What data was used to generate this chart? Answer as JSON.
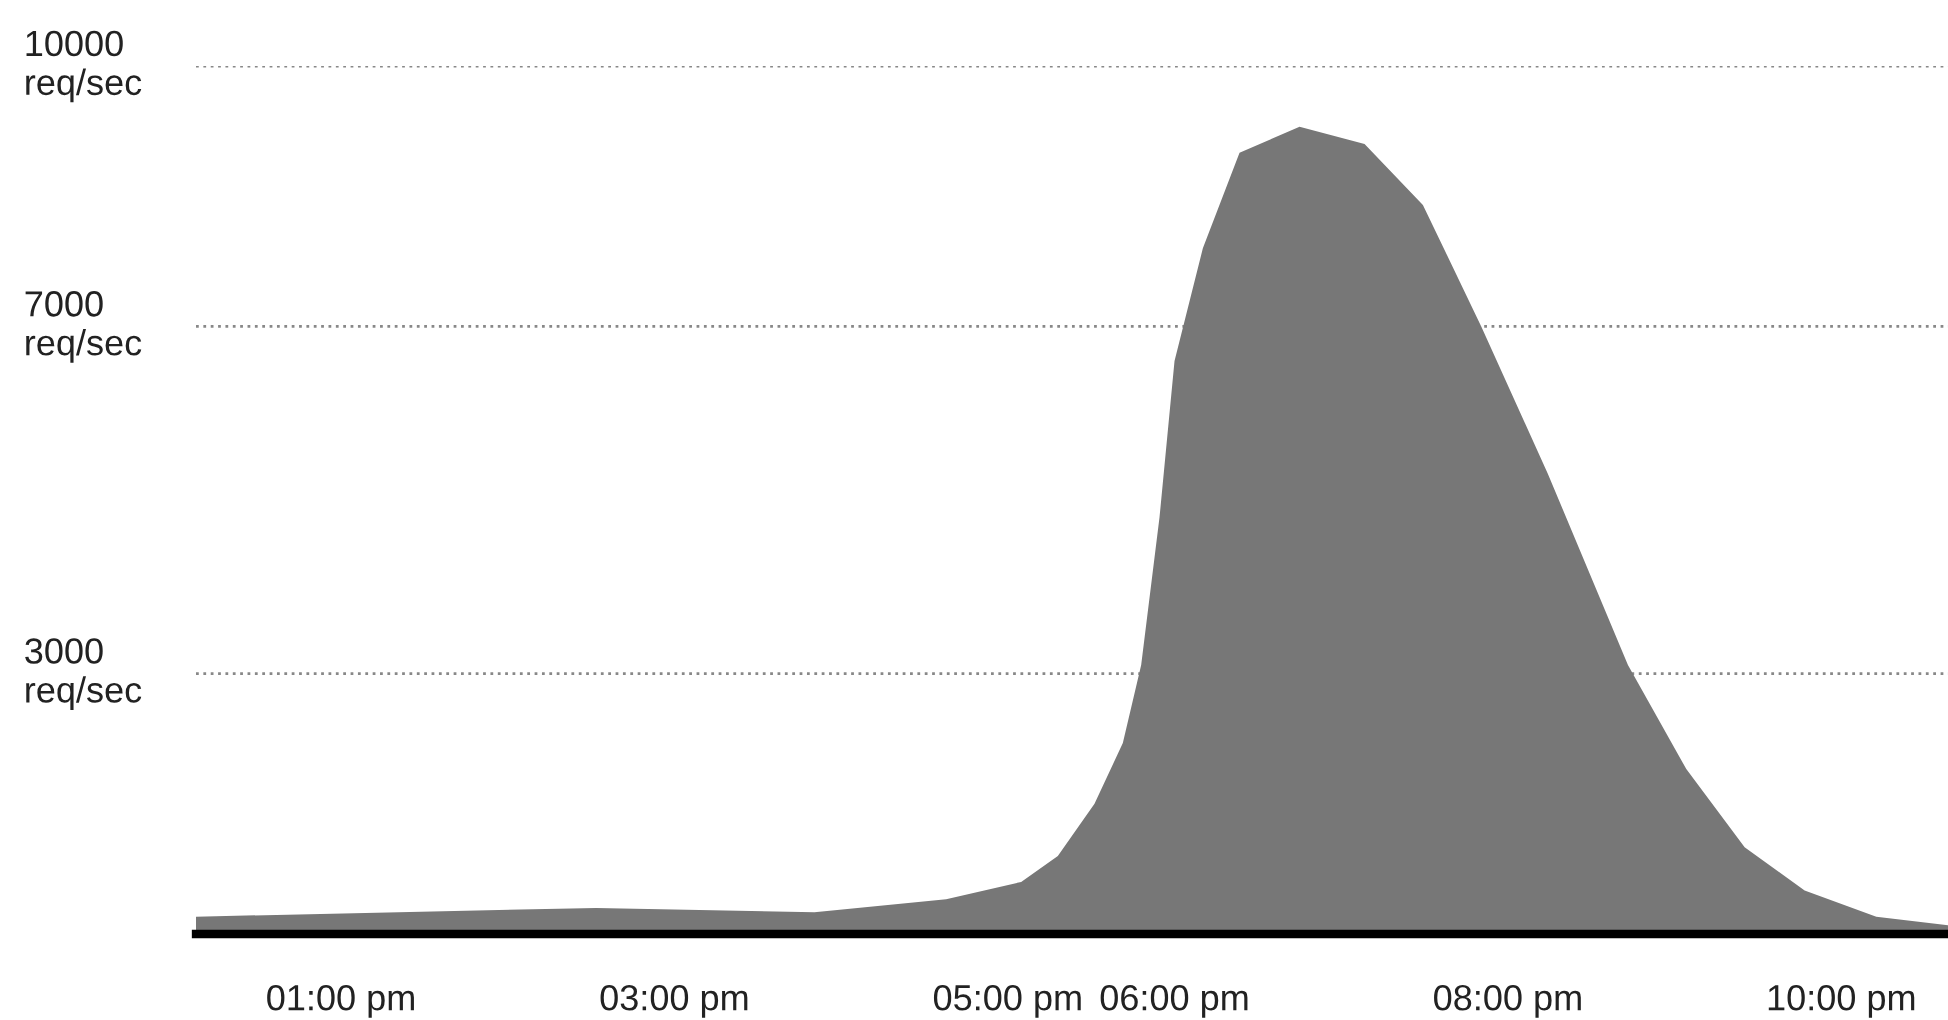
{
  "chart_data": {
    "type": "area",
    "x": [
      12.13,
      14.53,
      15.84,
      16.63,
      17.08,
      17.3,
      17.52,
      17.69,
      17.8,
      17.91,
      18.0,
      18.17,
      18.39,
      18.75,
      19.14,
      19.49,
      19.84,
      20.24,
      20.72,
      21.07,
      21.42,
      21.78,
      22.21,
      22.64
    ],
    "series": [
      {
        "color": "#777777",
        "values": [
          200,
          300,
          250,
          400,
          600,
          900,
          1500,
          2200,
          3100,
          4800,
          6600,
          7900,
          9000,
          9300,
          9100,
          8400,
          7000,
          5300,
          3100,
          1900,
          1000,
          500,
          200,
          100
        ]
      }
    ],
    "xlim": [
      12.13,
      22.64
    ],
    "xticks": [
      {
        "value": 13,
        "label": "01:00 pm"
      },
      {
        "value": 15,
        "label": "03:00 pm"
      },
      {
        "value": 17,
        "label": "05:00 pm"
      },
      {
        "value": 18,
        "label": "06:00 pm"
      },
      {
        "value": 20,
        "label": "08:00 pm"
      },
      {
        "value": 22,
        "label": "10:00 pm"
      }
    ],
    "ylim": [
      0,
      10000
    ],
    "yticks": [
      {
        "value": 3000,
        "label": "3000\nreq/sec"
      },
      {
        "value": 7000,
        "label": "7000\nreq/sec"
      },
      {
        "value": 10000,
        "label": "10000\nreq/sec"
      }
    ],
    "grid": "y",
    "line_style": "dotted"
  }
}
